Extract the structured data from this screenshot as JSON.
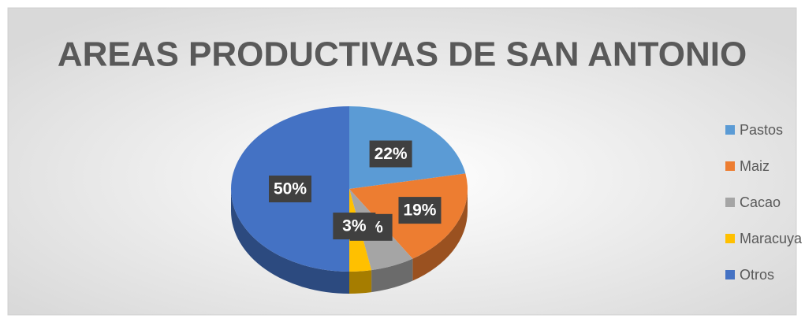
{
  "chart_data": {
    "type": "pie3d",
    "title": "AREAS PRODUCTIVAS DE SAN ANTONIO",
    "categories": [
      "Pastos",
      "Maiz",
      "Cacao",
      "Maracuya",
      "Otros"
    ],
    "values": [
      22,
      19,
      6,
      3,
      50
    ],
    "value_labels": [
      "22%",
      "19%",
      "6%",
      "3%",
      "50%"
    ],
    "colors": [
      "#5b9bd5",
      "#ed7d31",
      "#a5a5a5",
      "#ffc000",
      "#4472c4"
    ],
    "legend": "right"
  }
}
